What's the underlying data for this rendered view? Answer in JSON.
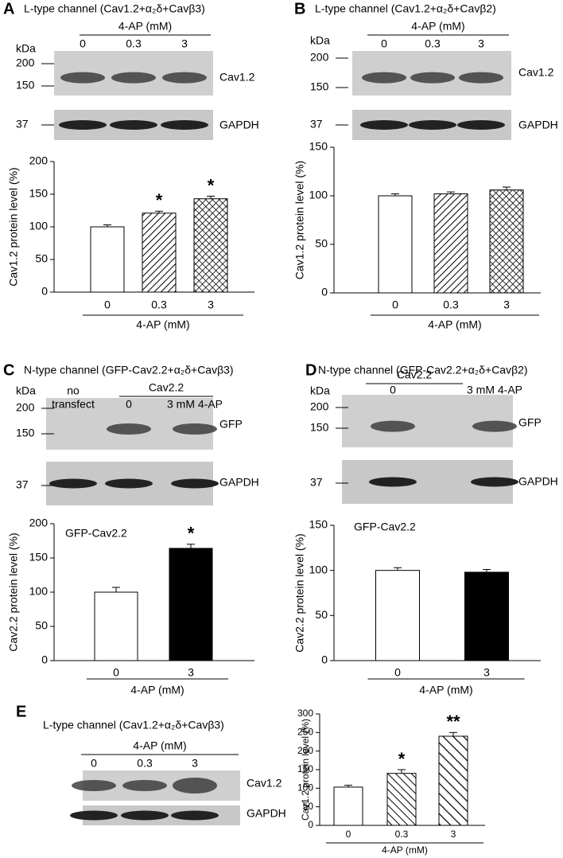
{
  "chart_data": [
    {
      "type": "bar",
      "panel": "A",
      "title": "L-type channel (Cav1.2+α₂δ+Cavβ3)",
      "blot": {
        "kda": "kDa",
        "ladder": [
          "200",
          "150"
        ],
        "loading": "37",
        "lane_header": "4-AP (mM)",
        "lanes": [
          "0",
          "0.3",
          "3"
        ],
        "band": "Cav1.2",
        "control": "GAPDH"
      },
      "ylabel": "Cav1.2 protein level (%)",
      "xlabel": "4-AP (mM)",
      "categories": [
        "0",
        "0.3",
        "3"
      ],
      "values": [
        100,
        121,
        143
      ],
      "errors": [
        3,
        3,
        4
      ],
      "fills": [
        "none",
        "hatch",
        "crosshatch"
      ],
      "markers": [
        null,
        "*",
        "*"
      ],
      "ylim": [
        0,
        200
      ],
      "yticks": [
        0,
        50,
        100,
        150,
        200
      ]
    },
    {
      "type": "bar",
      "panel": "B",
      "title": "L-type channel (Cav1.2+α₂δ+Cavβ2)",
      "blot": {
        "kda": "kDa",
        "ladder": [
          "200",
          "150"
        ],
        "loading": "37",
        "lane_header": "4-AP (mM)",
        "lanes": [
          "0",
          "0.3",
          "3"
        ],
        "band": "Cav1.2",
        "control": "GAPDH"
      },
      "ylabel": "Cav1.2 protein level (%)",
      "xlabel": "4-AP (mM)",
      "categories": [
        "0",
        "0.3",
        "3"
      ],
      "values": [
        100,
        102,
        106
      ],
      "errors": [
        2,
        2,
        3
      ],
      "fills": [
        "none",
        "hatch",
        "crosshatch"
      ],
      "markers": [
        null,
        null,
        null
      ],
      "ylim": [
        0,
        150
      ],
      "yticks": [
        0,
        50,
        100,
        150
      ]
    },
    {
      "type": "bar",
      "panel": "C",
      "title": "N-type channel (GFP-Cav2.2+α₂δ+Cavβ3)",
      "blot": {
        "kda": "kDa",
        "ladder": [
          "200",
          "150"
        ],
        "loading": "37",
        "extra_lane": [
          "no",
          "transfect"
        ],
        "lane_header": "Cav2.2",
        "lanes": [
          "0",
          "3 mM 4-AP"
        ],
        "band": "GFP",
        "control": "GAPDH"
      },
      "inset": "GFP-Cav2.2",
      "ylabel": "Cav2.2 protein level (%)",
      "xlabel": "4-AP (mM)",
      "categories": [
        "0",
        "3"
      ],
      "values": [
        100,
        164
      ],
      "errors": [
        7,
        6
      ],
      "fills": [
        "none",
        "solid"
      ],
      "markers": [
        null,
        "*"
      ],
      "ylim": [
        0,
        200
      ],
      "yticks": [
        0,
        50,
        100,
        150,
        200
      ]
    },
    {
      "type": "bar",
      "panel": "D",
      "title": "N-type channel (GFP-Cav2.2+α₂δ+Cavβ2)",
      "blot": {
        "kda": "kDa",
        "ladder": [
          "200",
          "150"
        ],
        "loading": "37",
        "lane_header": "Cav2.2",
        "lanes": [
          "0",
          "3 mM 4-AP"
        ],
        "band": "GFP",
        "control": "GAPDH"
      },
      "inset": "GFP-Cav2.2",
      "ylabel": "Cav2.2 protein level (%)",
      "xlabel": "4-AP (mM)",
      "categories": [
        "0",
        "3"
      ],
      "values": [
        100,
        98
      ],
      "errors": [
        3,
        3
      ],
      "fills": [
        "none",
        "solid"
      ],
      "markers": [
        null,
        null
      ],
      "ylim": [
        0,
        150
      ],
      "yticks": [
        0,
        50,
        100,
        150
      ]
    },
    {
      "type": "bar",
      "panel": "E",
      "title": "L-type channel (Cav1.2+α₂δ+Cavβ3)",
      "blot": {
        "lane_header": "4-AP (mM)",
        "lanes": [
          "0",
          "0.3",
          "3"
        ],
        "band": "Cav1.2",
        "control": "GAPDH"
      },
      "ylabel": "Cav1.2 protein level (%)",
      "xlabel": "4-AP (mM)",
      "categories": [
        "0",
        "0.3",
        "3"
      ],
      "values": [
        103,
        140,
        240
      ],
      "errors": [
        5,
        10,
        10
      ],
      "fills": [
        "none",
        "backhatch",
        "widehatch"
      ],
      "markers": [
        null,
        "*",
        "**"
      ],
      "ylim": [
        0,
        300
      ],
      "yticks": [
        0,
        50,
        100,
        150,
        200,
        250,
        300
      ]
    }
  ]
}
